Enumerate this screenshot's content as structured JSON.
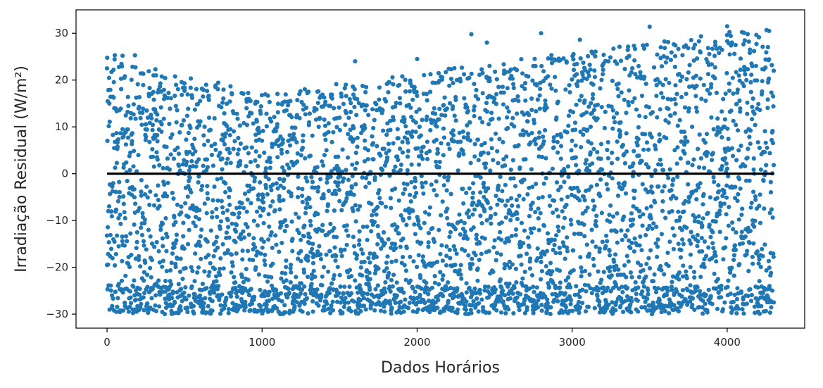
{
  "chart_data": {
    "type": "scatter",
    "title": "",
    "xlabel": "Dados Horários",
    "ylabel": "Irradiação Residual (W/m²)",
    "xlim": [
      -200,
      4500
    ],
    "ylim": [
      -33,
      35
    ],
    "xticks": [
      0,
      1000,
      2000,
      3000,
      4000
    ],
    "xtick_labels": [
      "0",
      "1000",
      "2000",
      "3000",
      "4000"
    ],
    "yticks": [
      -30,
      -20,
      -10,
      0,
      10,
      20,
      30
    ],
    "ytick_labels": [
      "−30",
      "−20",
      "−10",
      "0",
      "10",
      "20",
      "30"
    ],
    "grid": false,
    "legend": "none",
    "series": [
      {
        "kind": "scatter",
        "color": "#1f77b4",
        "n_points": 4300,
        "x_range": [
          0,
          4300
        ],
        "y_range": [
          -30,
          31.5
        ],
        "sample_points": [
          [
            0,
            22.5
          ],
          [
            0,
            -19.5
          ],
          [
            50,
            25.3
          ],
          [
            100,
            25.2
          ],
          [
            180,
            25.3
          ],
          [
            300,
            21
          ],
          [
            500,
            17.7
          ],
          [
            900,
            14
          ],
          [
            1300,
            17.5
          ],
          [
            1600,
            24
          ],
          [
            2000,
            24.5
          ],
          [
            2350,
            29.8
          ],
          [
            2450,
            28
          ],
          [
            2800,
            30
          ],
          [
            3050,
            28.6
          ],
          [
            3500,
            31.4
          ],
          [
            4000,
            31.5
          ],
          [
            4270,
            30.5
          ],
          [
            4300,
            22
          ],
          [
            2350,
            -29.8
          ],
          [
            2750,
            -29.8
          ],
          [
            2950,
            -29.5
          ],
          [
            1200,
            -29.5
          ],
          [
            4200,
            -29.5
          ],
          [
            4300,
            -27.5
          ]
        ]
      },
      {
        "kind": "line",
        "color": "#000000",
        "x": [
          0,
          4300
        ],
        "y": [
          0,
          0
        ]
      }
    ]
  }
}
